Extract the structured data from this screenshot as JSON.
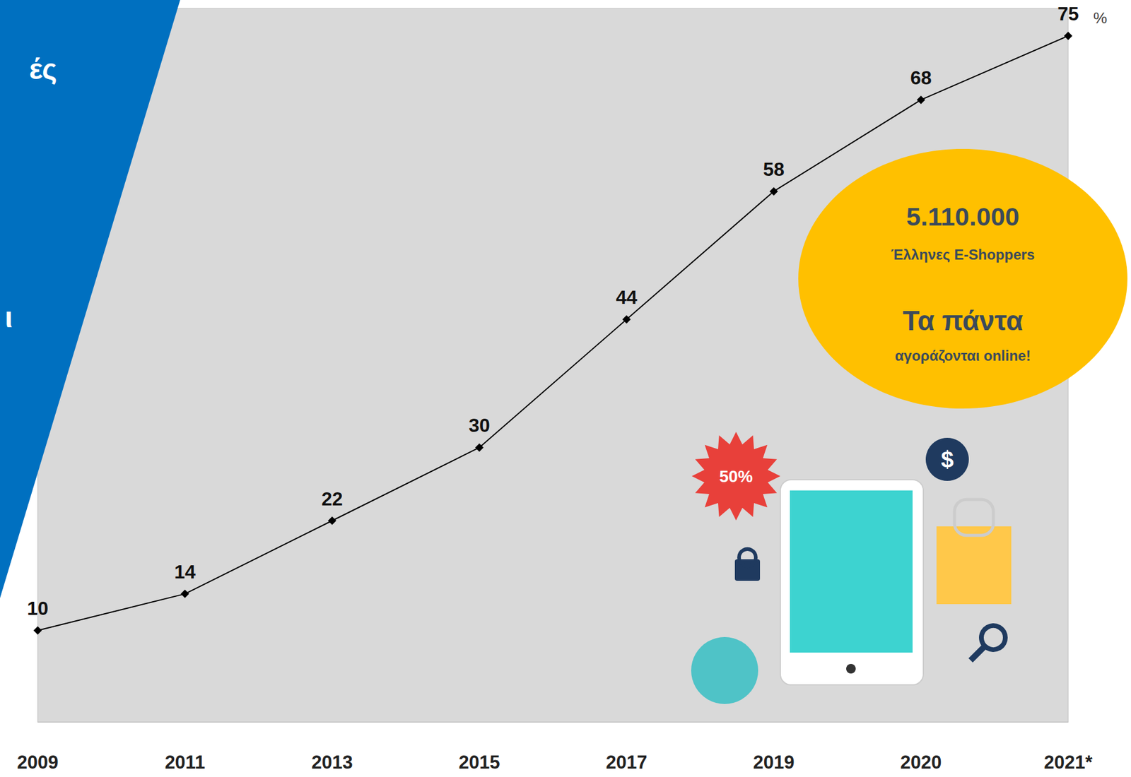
{
  "chart_data": {
    "type": "line",
    "categories": [
      "2009",
      "2011",
      "2013",
      "2015",
      "2017",
      "2019",
      "2020",
      "2021*"
    ],
    "values": [
      10,
      14,
      22,
      30,
      44,
      58,
      68,
      75
    ],
    "color": "#000000",
    "marker": "diamond",
    "data_labels": true,
    "tick_labels": "x",
    "grid": false,
    "ylim": [
      0,
      78
    ],
    "yticks": [],
    "unit": "%",
    "annotations": [
      "5.110.000",
      "Έλληνες E-Shoppers",
      "Τα πάντα",
      "αγοράζονται online!"
    ],
    "side_texts": [
      "ές",
      "ι"
    ],
    "icon_texts": [
      "50%",
      "$"
    ]
  }
}
